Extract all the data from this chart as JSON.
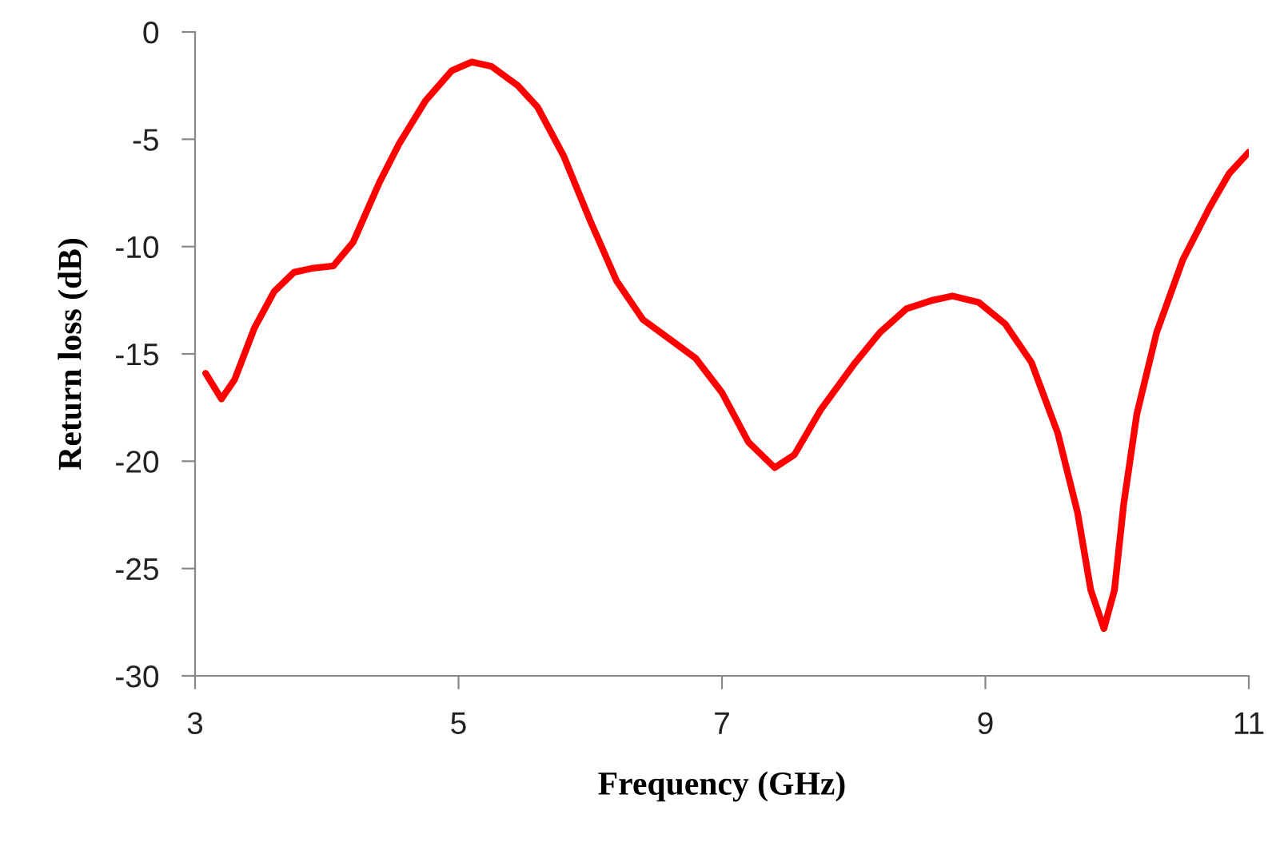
{
  "chart_data": {
    "type": "line",
    "xlabel": "Frequency (GHz)",
    "ylabel": "Return loss (dB)",
    "xlim": [
      3,
      11
    ],
    "xticks": [
      3,
      5,
      7,
      9,
      11
    ],
    "ylim": [
      -30,
      0
    ],
    "yticks": [
      0,
      -5,
      -10,
      -15,
      -20,
      -25,
      -30
    ],
    "grid": false,
    "legend": false,
    "marker": "none",
    "line_style": "solid",
    "series": [
      {
        "color": "#ff0000",
        "x": [
          3.08,
          3.2,
          3.3,
          3.45,
          3.6,
          3.75,
          3.9,
          4.05,
          4.2,
          4.4,
          4.55,
          4.75,
          4.95,
          5.1,
          5.25,
          5.45,
          5.6,
          5.8,
          6.0,
          6.2,
          6.4,
          6.6,
          6.8,
          7.0,
          7.2,
          7.4,
          7.55,
          7.75,
          8.0,
          8.2,
          8.4,
          8.6,
          8.75,
          8.95,
          9.15,
          9.35,
          9.55,
          9.7,
          9.8,
          9.9,
          9.98,
          10.05,
          10.15,
          10.3,
          10.5,
          10.7,
          10.85,
          11.0
        ],
        "values": [
          -15.9,
          -17.1,
          -16.2,
          -13.8,
          -12.1,
          -11.2,
          -11.0,
          -10.9,
          -9.8,
          -7.0,
          -5.2,
          -3.2,
          -1.8,
          -1.4,
          -1.6,
          -2.5,
          -3.5,
          -5.8,
          -8.8,
          -11.6,
          -13.4,
          -14.3,
          -15.2,
          -16.8,
          -19.1,
          -20.3,
          -19.7,
          -17.6,
          -15.5,
          -14.0,
          -12.9,
          -12.5,
          -12.3,
          -12.6,
          -13.6,
          -15.4,
          -18.7,
          -22.4,
          -26.0,
          -27.8,
          -26.0,
          -22.0,
          -17.8,
          -14.0,
          -10.6,
          -8.2,
          -6.6,
          -5.6
        ]
      }
    ]
  }
}
